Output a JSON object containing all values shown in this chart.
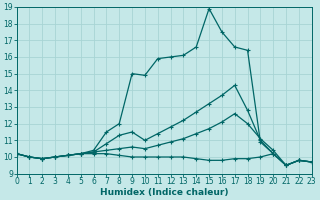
{
  "xlabel": "Humidex (Indice chaleur)",
  "background_color": "#c5e8e8",
  "grid_color": "#a8d4d4",
  "line_color": "#006666",
  "x": [
    0,
    1,
    2,
    3,
    4,
    5,
    6,
    7,
    8,
    9,
    10,
    11,
    12,
    13,
    14,
    15,
    16,
    17,
    18,
    19,
    20,
    21,
    22,
    23
  ],
  "line1": [
    10.2,
    10.0,
    9.9,
    10.0,
    10.1,
    10.2,
    10.4,
    11.5,
    12.0,
    15.0,
    14.9,
    15.9,
    16.0,
    16.1,
    16.6,
    18.9,
    17.5,
    16.6,
    16.4,
    10.9,
    10.2,
    9.5,
    9.8,
    9.7
  ],
  "line2": [
    10.2,
    10.0,
    9.9,
    10.0,
    10.1,
    10.2,
    10.3,
    10.8,
    11.3,
    11.5,
    11.0,
    11.4,
    11.8,
    12.2,
    12.7,
    13.2,
    13.7,
    14.3,
    12.8,
    11.0,
    10.2,
    9.5,
    9.8,
    9.7
  ],
  "line3": [
    10.2,
    10.0,
    9.9,
    10.0,
    10.1,
    10.2,
    10.3,
    10.4,
    10.5,
    10.6,
    10.5,
    10.7,
    10.9,
    11.1,
    11.4,
    11.7,
    12.1,
    12.6,
    12.0,
    11.1,
    10.4,
    9.5,
    9.8,
    9.7
  ],
  "line4": [
    10.2,
    10.0,
    9.9,
    10.0,
    10.1,
    10.2,
    10.2,
    10.2,
    10.1,
    10.0,
    10.0,
    10.0,
    10.0,
    10.0,
    9.9,
    9.8,
    9.8,
    9.9,
    9.9,
    10.0,
    10.2,
    9.5,
    9.8,
    9.7
  ],
  "ylim": [
    9,
    19
  ],
  "xlim": [
    0,
    23
  ],
  "yticks": [
    9,
    10,
    11,
    12,
    13,
    14,
    15,
    16,
    17,
    18,
    19
  ],
  "xticks": [
    0,
    1,
    2,
    3,
    4,
    5,
    6,
    7,
    8,
    9,
    10,
    11,
    12,
    13,
    14,
    15,
    16,
    17,
    18,
    19,
    20,
    21,
    22,
    23
  ],
  "tick_fontsize": 5.5,
  "xlabel_fontsize": 6.5,
  "marker_size": 3,
  "linewidth": 0.9
}
